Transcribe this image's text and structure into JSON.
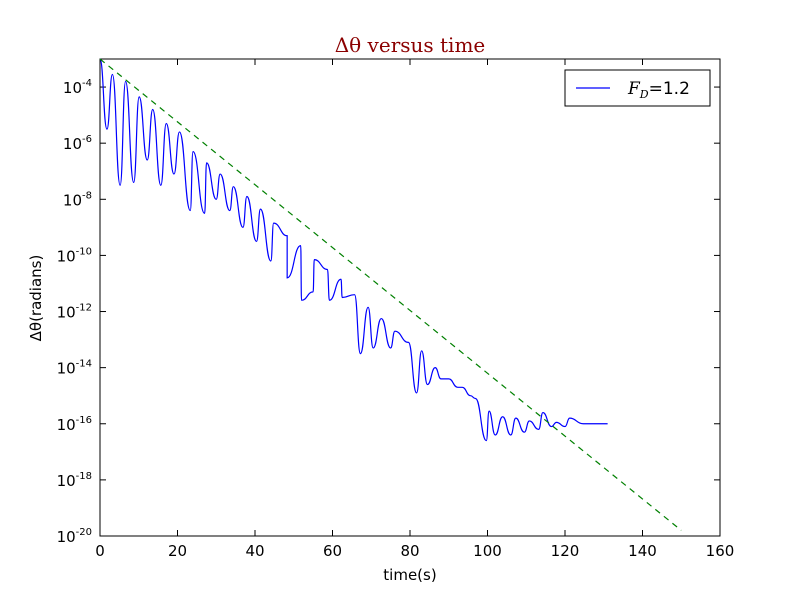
{
  "chart_data": {
    "type": "line",
    "title": "Δθ versus time",
    "xlabel": "time(s)",
    "ylabel": "Δθ(radians)",
    "xlim": [
      0,
      160
    ],
    "x_ticks": [
      0,
      20,
      40,
      60,
      80,
      100,
      120,
      140,
      160
    ],
    "y_scale": "log",
    "ylim": [
      1e-20,
      0.001
    ],
    "y_tick_base": "10",
    "y_tick_exponents": [
      -20,
      -18,
      -16,
      -14,
      -12,
      -10,
      -8,
      -6,
      -4
    ],
    "legend": {
      "placement": "top-right",
      "entries": [
        {
          "symbol": "F",
          "subscript": "D",
          "suffix": "=1.2",
          "series": "solid"
        }
      ]
    },
    "series": [
      {
        "style": "solid",
        "color": "#0000ff",
        "description_points": "log10 envelope of oscillating Δθ",
        "peaks": [
          [
            0.0,
            -3.0
          ],
          [
            3.2,
            -3.55
          ],
          [
            6.6,
            -3.8
          ],
          [
            10.1,
            -4.35
          ],
          [
            13.6,
            -4.8
          ],
          [
            17.1,
            -5.3
          ],
          [
            20.5,
            -5.6
          ],
          [
            24.0,
            -6.3
          ],
          [
            27.5,
            -6.7
          ],
          [
            31.0,
            -7.1
          ],
          [
            34.4,
            -7.55
          ],
          [
            37.9,
            -7.9
          ],
          [
            41.4,
            -8.35
          ],
          [
            44.8,
            -8.85
          ],
          [
            48.3,
            -9.3
          ],
          [
            51.8,
            -9.65
          ],
          [
            55.3,
            -10.15
          ],
          [
            58.7,
            -10.5
          ],
          [
            62.2,
            -10.85
          ],
          [
            65.7,
            -11.4
          ],
          [
            69.2,
            -11.85
          ],
          [
            72.6,
            -12.25
          ],
          [
            76.1,
            -12.7
          ],
          [
            79.6,
            -13.1
          ],
          [
            83.0,
            -13.4
          ],
          [
            86.5,
            -14.0
          ],
          [
            90.0,
            -14.4
          ],
          [
            93.5,
            -14.7
          ],
          [
            96.9,
            -15.1
          ],
          [
            100.4,
            -15.55
          ],
          [
            103.9,
            -15.75
          ],
          [
            107.3,
            -15.8
          ],
          [
            110.8,
            -15.9
          ],
          [
            114.3,
            -15.6
          ],
          [
            117.8,
            -15.95
          ],
          [
            121.2,
            -15.8
          ],
          [
            124.7,
            -16.0
          ],
          [
            128.0,
            -16.0
          ],
          [
            131.0,
            -16.0
          ]
        ],
        "troughs": [
          [
            1.8,
            -5.5
          ],
          [
            5.2,
            -7.5
          ],
          [
            8.7,
            -7.4
          ],
          [
            12.2,
            -6.6
          ],
          [
            15.7,
            -7.5
          ],
          [
            19.1,
            -7.1
          ],
          [
            23.3,
            -8.4
          ],
          [
            27.0,
            -8.5
          ],
          [
            30.0,
            -8.0
          ],
          [
            33.5,
            -8.4
          ],
          [
            36.9,
            -9.0
          ],
          [
            40.4,
            -9.5
          ],
          [
            44.1,
            -10.2
          ],
          [
            48.3,
            -10.8
          ],
          [
            52.0,
            -11.6
          ],
          [
            55.0,
            -11.3
          ],
          [
            59.2,
            -11.6
          ],
          [
            62.5,
            -11.5
          ],
          [
            67.2,
            -13.5
          ],
          [
            70.5,
            -13.3
          ],
          [
            75.0,
            -13.3
          ],
          [
            81.7,
            -14.9
          ],
          [
            84.5,
            -14.6
          ],
          [
            88.0,
            -14.4
          ],
          [
            92.3,
            -14.7
          ],
          [
            95.6,
            -15.0
          ],
          [
            99.7,
            -16.6
          ],
          [
            102.0,
            -16.4
          ],
          [
            106.0,
            -16.4
          ],
          [
            109.5,
            -16.3
          ],
          [
            113.2,
            -16.2
          ],
          [
            116.5,
            -16.1
          ],
          [
            120.0,
            -16.1
          ]
        ]
      },
      {
        "style": "dashed",
        "color": "#008000",
        "x": [
          0,
          150
        ],
        "log10_y": [
          -3.0,
          -19.8
        ]
      }
    ]
  }
}
